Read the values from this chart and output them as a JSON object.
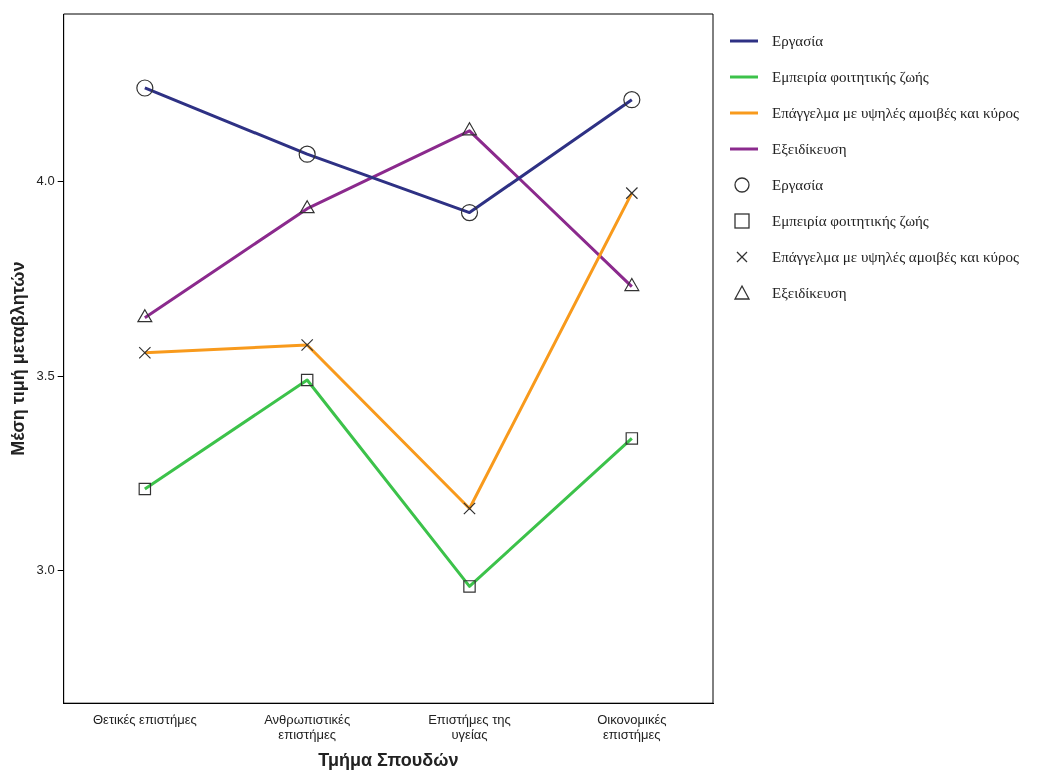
{
  "chart_data": {
    "type": "line",
    "xlabel": "Τμήμα Σπουδών",
    "ylabel": "Μέση τιμή μεταβλητών",
    "categories": [
      "Θετικές επιστήμες",
      "Ανθρωπιστικές επιστήμες",
      "Επιστήμες της υγείας",
      "Οικονομικές επιστήμες"
    ],
    "series": [
      {
        "name": "Εργασία",
        "color": "#2e3184",
        "marker": "circle",
        "values": [
          4.24,
          4.07,
          3.92,
          4.21
        ]
      },
      {
        "name": "Εμπειρία φοιτητικής ζωής",
        "color": "#3cc24a",
        "marker": "square",
        "values": [
          3.21,
          3.49,
          2.96,
          3.34
        ]
      },
      {
        "name": "Επάγγελμα με υψηλές αμοιβές και κύρος",
        "color": "#f89a1c",
        "marker": "cross",
        "values": [
          3.56,
          3.58,
          3.16,
          3.97
        ]
      },
      {
        "name": "Εξειδίκευση",
        "color": "#8b2a8d",
        "marker": "triangle",
        "values": [
          3.65,
          3.93,
          4.13,
          3.73
        ]
      }
    ],
    "ylim": [
      2.66,
      4.43
    ],
    "yticks": [
      {
        "value": 3,
        "label": "3.0"
      },
      {
        "value": 3.5,
        "label": "3.5"
      },
      {
        "value": 4,
        "label": "4.0"
      }
    ],
    "grid": false,
    "legend": "right",
    "line_style": "solid"
  }
}
